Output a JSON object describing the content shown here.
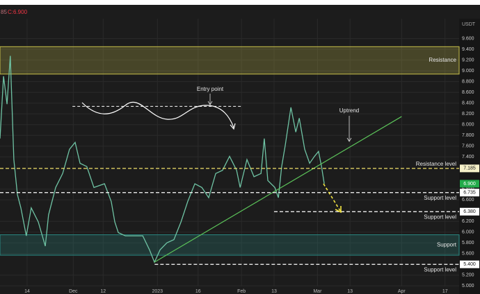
{
  "header": {
    "bar_text": "85",
    "close_text": "C:6.900",
    "currency": "USDT"
  },
  "chart_data": {
    "type": "line",
    "x": [
      0,
      1.3,
      2.6,
      3.8,
      5.1,
      6.4,
      7.7,
      9.7,
      11.5,
      14.1,
      16.7,
      17.9,
      20.5,
      23.1,
      25.6,
      27.7,
      29.5,
      32,
      34.6,
      38.5,
      41,
      42.3,
      43.6,
      46.2,
      50,
      52.6,
      55.1,
      56.9,
      59,
      61.5,
      64.1,
      66.7,
      69.2,
      71.8,
      74.4,
      76.9,
      79.5,
      82,
      84.6,
      87.2,
      88.5,
      91,
      93.6,
      96.2,
      97.4,
      98.7,
      101.3,
      102.6,
      103.8,
      105.1,
      107.2,
      109,
      110.3,
      112.3,
      114.1,
      115.9,
      117.4,
      118.5,
      119.5
    ],
    "series": [
      {
        "color": "#6fc3a4",
        "values": [
          7.74,
          8.9,
          8.38,
          9.28,
          7.35,
          6.7,
          6.45,
          5.93,
          6.45,
          6.19,
          5.74,
          6.32,
          6.83,
          7.09,
          7.54,
          7.67,
          7.28,
          7.22,
          6.83,
          6.9,
          6.57,
          6.19,
          5.99,
          5.93,
          5.93,
          5.93,
          5.67,
          5.44,
          5.67,
          5.8,
          5.86,
          6.19,
          6.57,
          6.9,
          6.83,
          6.64,
          7.09,
          7.15,
          7.41,
          7.15,
          6.83,
          7.35,
          7.03,
          7.09,
          7.74,
          6.96,
          6.83,
          6.64,
          7.22,
          7.61,
          8.32,
          7.86,
          8.12,
          7.54,
          7.28,
          7.41,
          7.5,
          7.22,
          6.9
        ]
      }
    ],
    "xlim": [
      0,
      169.2
    ],
    "ylim": [
      4.99,
      9.97
    ],
    "xticks": [
      {
        "value": 10,
        "label": "14"
      },
      {
        "value": 27,
        "label": "Dec"
      },
      {
        "value": 38,
        "label": "12"
      },
      {
        "value": 58,
        "label": "2023"
      },
      {
        "value": 73,
        "label": "16"
      },
      {
        "value": 89,
        "label": "Feb"
      },
      {
        "value": 101,
        "label": "13"
      },
      {
        "value": 117,
        "label": "Mar"
      },
      {
        "value": 129,
        "label": "13"
      },
      {
        "value": 148,
        "label": "Apr"
      },
      {
        "value": 164,
        "label": "17"
      }
    ],
    "yticks": [
      {
        "value": 5,
        "label": "5.000"
      },
      {
        "value": 5.2,
        "label": "5.200"
      },
      {
        "value": 5.6,
        "label": "5.600"
      },
      {
        "value": 5.8,
        "label": "5.800"
      },
      {
        "value": 6,
        "label": "6.000"
      },
      {
        "value": 6.2,
        "label": "6.200"
      },
      {
        "value": 6.6,
        "label": "6.600"
      },
      {
        "value": 6.8,
        "label": "6.800"
      },
      {
        "value": 7.4,
        "label": "7.400"
      },
      {
        "value": 7.6,
        "label": "7.600"
      },
      {
        "value": 7.8,
        "label": "7.800"
      },
      {
        "value": 8,
        "label": "8.000"
      },
      {
        "value": 8.2,
        "label": "8.200"
      },
      {
        "value": 8.4,
        "label": "8.400"
      },
      {
        "value": 8.6,
        "label": "8.600"
      },
      {
        "value": 8.8,
        "label": "8.800"
      },
      {
        "value": 9,
        "label": "9.000"
      },
      {
        "value": 9.2,
        "label": "9.200"
      },
      {
        "value": 9.4,
        "label": "9.400"
      },
      {
        "value": 9.6,
        "label": "9.600"
      }
    ],
    "grid": true,
    "zones": [
      {
        "name": "Resistance",
        "range": [
          8.94,
          9.45
        ],
        "color": "#c8c04a"
      },
      {
        "name": "Support",
        "range": [
          5.57,
          5.95
        ],
        "color": "#2a8a84"
      }
    ],
    "levels": [
      {
        "name": "Resistance level",
        "value": 7.185,
        "value_label": "7.185",
        "from": 0,
        "color": "#f0e06a"
      },
      {
        "name": "Support level",
        "value": 6.735,
        "value_label": "6.735",
        "from": 0,
        "color": "#ffffff"
      },
      {
        "name": "Support level",
        "value": 6.38,
        "value_label": "6.380",
        "from": 101,
        "color": "#ffffff"
      },
      {
        "name": "Support level",
        "value": 5.4,
        "value_label": "5.400",
        "from": 57,
        "color": "#ffffff"
      }
    ],
    "last_price": {
      "value": 6.9,
      "label": "6.900",
      "color": "#22ab4a"
    },
    "trendline": {
      "x": [
        56.9,
        148
      ],
      "y": [
        5.44,
        8.15
      ],
      "color": "#5cc45a"
    },
    "entry": {
      "text": "Entry point",
      "value": 8.34,
      "x": [
        26.7,
        89
      ]
    },
    "uptrend": {
      "text": "Uptrend"
    }
  }
}
